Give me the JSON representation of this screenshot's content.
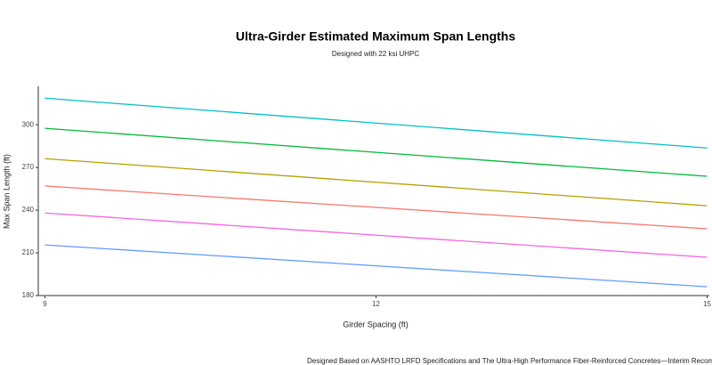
{
  "chart_data": {
    "type": "line",
    "title": "Ultra-Girder Estimated Maximum Span Lengths",
    "subtitle": "Designed with 22 ksi UHPC",
    "x_label": "Girder Spacing (ft)",
    "y_label": "Max Span Length (ft)",
    "caption": "Designed Based on AASHTO LRFD Specifications and The Ultra-High Performance Fiber-Reinforced Concretes—Interim Recommendations",
    "x": [
      9,
      15
    ],
    "series": [
      {
        "color": "#00BFC4",
        "values": [
          318.7,
          283.7
        ]
      },
      {
        "color": "#00BA38",
        "values": [
          297.5,
          263.8
        ]
      },
      {
        "color": "#B79F00",
        "values": [
          276.2,
          243.1
        ]
      },
      {
        "color": "#F8766D",
        "values": [
          257,
          226.9
        ]
      },
      {
        "color": "#F564E3",
        "values": [
          238,
          206.9
        ]
      },
      {
        "color": "#619CFF",
        "values": [
          215.6,
          186.2
        ]
      }
    ],
    "xlim": [
      8.94,
      15.02
    ],
    "xticks": [
      9,
      12,
      15
    ],
    "ylim": [
      180,
      327
    ],
    "yticks": [
      180,
      210,
      240,
      270,
      300
    ]
  }
}
